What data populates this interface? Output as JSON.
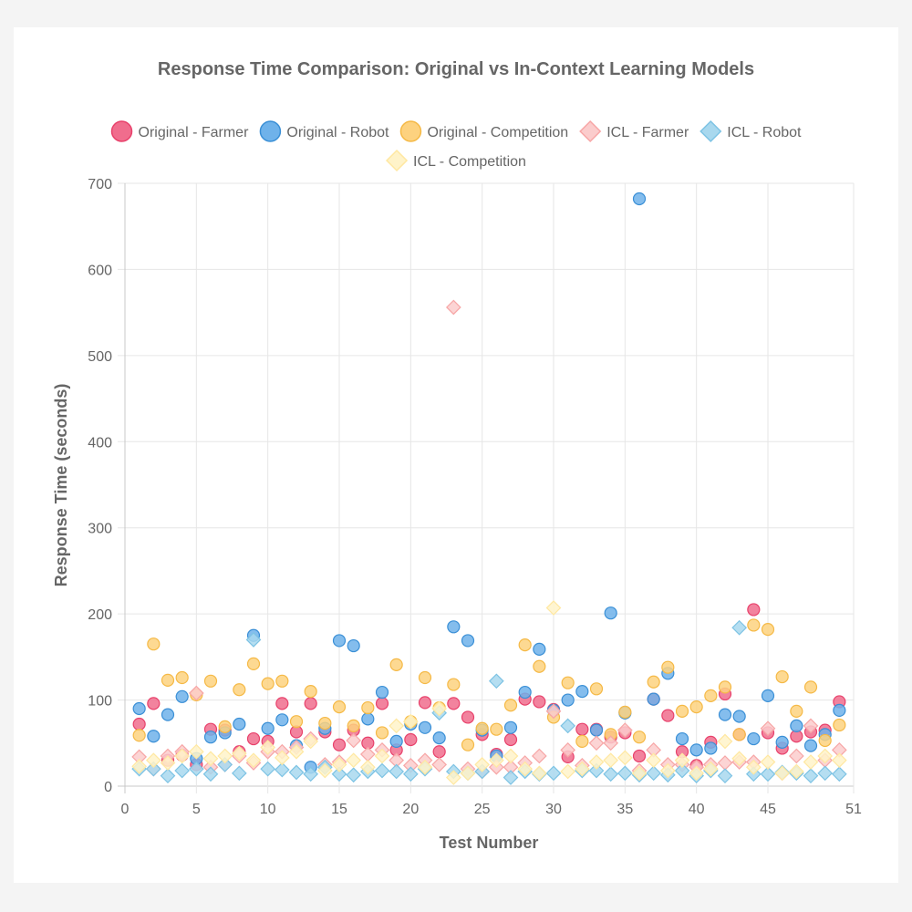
{
  "chart_data": {
    "type": "scatter",
    "title": "Response Time Comparison: Original vs In-Context Learning Models",
    "xlabel": "Test Number",
    "ylabel": "Response Time (seconds)",
    "xlim": [
      0,
      51
    ],
    "ylim": [
      0,
      700
    ],
    "x_ticks": [
      0,
      5,
      10,
      15,
      20,
      25,
      30,
      35,
      40,
      45,
      51
    ],
    "y_ticks": [
      0,
      100,
      200,
      300,
      400,
      500,
      600,
      700
    ],
    "grid": true,
    "legend_position": "top",
    "series": [
      {
        "name": "Original - Farmer",
        "marker": "circle",
        "fill": "#f06d8d",
        "stroke": "#e8416b",
        "points": [
          [
            1,
            72
          ],
          [
            2,
            96
          ],
          [
            3,
            30
          ],
          [
            4,
            36
          ],
          [
            5,
            25
          ],
          [
            6,
            66
          ],
          [
            7,
            65
          ],
          [
            8,
            40
          ],
          [
            9,
            55
          ],
          [
            10,
            52
          ],
          [
            11,
            96
          ],
          [
            12,
            63
          ],
          [
            13,
            96
          ],
          [
            14,
            63
          ],
          [
            15,
            48
          ],
          [
            16,
            65
          ],
          [
            17,
            50
          ],
          [
            18,
            96
          ],
          [
            19,
            42
          ],
          [
            20,
            54
          ],
          [
            21,
            97
          ],
          [
            22,
            40
          ],
          [
            23,
            96
          ],
          [
            24,
            80
          ],
          [
            25,
            60
          ],
          [
            26,
            37
          ],
          [
            27,
            54
          ],
          [
            28,
            101
          ],
          [
            29,
            98
          ],
          [
            30,
            89
          ],
          [
            31,
            34
          ],
          [
            32,
            66
          ],
          [
            33,
            66
          ],
          [
            34,
            57
          ],
          [
            35,
            62
          ],
          [
            36,
            35
          ],
          [
            37,
            101
          ],
          [
            38,
            82
          ],
          [
            39,
            40
          ],
          [
            40,
            24
          ],
          [
            41,
            51
          ],
          [
            42,
            107
          ],
          [
            43,
            60
          ],
          [
            44,
            205
          ],
          [
            45,
            62
          ],
          [
            46,
            44
          ],
          [
            47,
            58
          ],
          [
            48,
            63
          ],
          [
            49,
            65
          ],
          [
            50,
            98
          ]
        ]
      },
      {
        "name": "Original - Robot",
        "marker": "circle",
        "fill": "#6fb2ea",
        "stroke": "#3a8fd6",
        "points": [
          [
            1,
            90
          ],
          [
            2,
            58
          ],
          [
            3,
            83
          ],
          [
            4,
            104
          ],
          [
            5,
            32
          ],
          [
            6,
            57
          ],
          [
            7,
            62
          ],
          [
            8,
            72
          ],
          [
            9,
            175
          ],
          [
            10,
            67
          ],
          [
            11,
            77
          ],
          [
            12,
            47
          ],
          [
            13,
            22
          ],
          [
            14,
            67
          ],
          [
            15,
            169
          ],
          [
            16,
            163
          ],
          [
            17,
            78
          ],
          [
            18,
            109
          ],
          [
            19,
            52
          ],
          [
            20,
            72
          ],
          [
            21,
            68
          ],
          [
            22,
            56
          ],
          [
            23,
            185
          ],
          [
            24,
            169
          ],
          [
            25,
            65
          ],
          [
            26,
            35
          ],
          [
            27,
            68
          ],
          [
            28,
            109
          ],
          [
            29,
            159
          ],
          [
            30,
            88
          ],
          [
            31,
            100
          ],
          [
            32,
            110
          ],
          [
            33,
            65
          ],
          [
            34,
            201
          ],
          [
            35,
            85
          ],
          [
            36,
            682
          ],
          [
            37,
            101
          ],
          [
            38,
            131
          ],
          [
            39,
            55
          ],
          [
            40,
            42
          ],
          [
            41,
            44
          ],
          [
            42,
            83
          ],
          [
            43,
            81
          ],
          [
            44,
            55
          ],
          [
            45,
            105
          ],
          [
            46,
            51
          ],
          [
            47,
            70
          ],
          [
            48,
            47
          ],
          [
            49,
            60
          ],
          [
            50,
            88
          ]
        ]
      },
      {
        "name": "Original - Competition",
        "marker": "circle",
        "fill": "#fdd27f",
        "stroke": "#f5b946",
        "points": [
          [
            1,
            59
          ],
          [
            2,
            165
          ],
          [
            3,
            123
          ],
          [
            4,
            126
          ],
          [
            5,
            106
          ],
          [
            6,
            122
          ],
          [
            7,
            69
          ],
          [
            8,
            112
          ],
          [
            9,
            142
          ],
          [
            10,
            119
          ],
          [
            11,
            122
          ],
          [
            12,
            75
          ],
          [
            13,
            110
          ],
          [
            14,
            73
          ],
          [
            15,
            92
          ],
          [
            16,
            70
          ],
          [
            17,
            91
          ],
          [
            18,
            62
          ],
          [
            19,
            141
          ],
          [
            20,
            75
          ],
          [
            21,
            126
          ],
          [
            22,
            91
          ],
          [
            23,
            118
          ],
          [
            24,
            48
          ],
          [
            25,
            67
          ],
          [
            26,
            66
          ],
          [
            27,
            94
          ],
          [
            28,
            164
          ],
          [
            29,
            139
          ],
          [
            30,
            80
          ],
          [
            31,
            120
          ],
          [
            32,
            52
          ],
          [
            33,
            113
          ],
          [
            34,
            60
          ],
          [
            35,
            86
          ],
          [
            36,
            57
          ],
          [
            37,
            121
          ],
          [
            38,
            138
          ],
          [
            39,
            87
          ],
          [
            40,
            92
          ],
          [
            41,
            105
          ],
          [
            42,
            115
          ],
          [
            43,
            60
          ],
          [
            44,
            187
          ],
          [
            45,
            182
          ],
          [
            46,
            127
          ],
          [
            47,
            87
          ],
          [
            48,
            115
          ],
          [
            49,
            53
          ],
          [
            50,
            71
          ]
        ]
      },
      {
        "name": "ICL - Farmer",
        "marker": "diamond",
        "fill": "#fbcccc",
        "stroke": "#f7a6a6",
        "points": [
          [
            1,
            34
          ],
          [
            2,
            20
          ],
          [
            3,
            35
          ],
          [
            4,
            40
          ],
          [
            5,
            108
          ],
          [
            6,
            22
          ],
          [
            7,
            25
          ],
          [
            8,
            35
          ],
          [
            9,
            27
          ],
          [
            10,
            40
          ],
          [
            11,
            40
          ],
          [
            12,
            45
          ],
          [
            13,
            55
          ],
          [
            14,
            25
          ],
          [
            15,
            28
          ],
          [
            16,
            53
          ],
          [
            17,
            37
          ],
          [
            18,
            42
          ],
          [
            19,
            30
          ],
          [
            20,
            24
          ],
          [
            21,
            30
          ],
          [
            22,
            25
          ],
          [
            23,
            556
          ],
          [
            24,
            20
          ],
          [
            25,
            17
          ],
          [
            26,
            22
          ],
          [
            27,
            22
          ],
          [
            28,
            27
          ],
          [
            29,
            35
          ],
          [
            30,
            87
          ],
          [
            31,
            42
          ],
          [
            32,
            24
          ],
          [
            33,
            50
          ],
          [
            34,
            50
          ],
          [
            35,
            65
          ],
          [
            36,
            18
          ],
          [
            37,
            42
          ],
          [
            38,
            25
          ],
          [
            39,
            25
          ],
          [
            40,
            22
          ],
          [
            41,
            25
          ],
          [
            42,
            27
          ],
          [
            43,
            28
          ],
          [
            44,
            28
          ],
          [
            45,
            67
          ],
          [
            46,
            15
          ],
          [
            47,
            35
          ],
          [
            48,
            70
          ],
          [
            49,
            30
          ],
          [
            50,
            42
          ]
        ]
      },
      {
        "name": "ICL - Robot",
        "marker": "diamond",
        "fill": "#a8d8ee",
        "stroke": "#7dc3e4",
        "points": [
          [
            1,
            20
          ],
          [
            2,
            20
          ],
          [
            3,
            12
          ],
          [
            4,
            18
          ],
          [
            5,
            20
          ],
          [
            6,
            14
          ],
          [
            7,
            25
          ],
          [
            8,
            15
          ],
          [
            9,
            170
          ],
          [
            10,
            20
          ],
          [
            11,
            19
          ],
          [
            12,
            16
          ],
          [
            13,
            14
          ],
          [
            14,
            22
          ],
          [
            15,
            14
          ],
          [
            16,
            13
          ],
          [
            17,
            17
          ],
          [
            18,
            18
          ],
          [
            19,
            17
          ],
          [
            20,
            14
          ],
          [
            21,
            20
          ],
          [
            22,
            85
          ],
          [
            23,
            17
          ],
          [
            24,
            15
          ],
          [
            25,
            17
          ],
          [
            26,
            122
          ],
          [
            27,
            10
          ],
          [
            28,
            17
          ],
          [
            29,
            14
          ],
          [
            30,
            15
          ],
          [
            31,
            70
          ],
          [
            32,
            18
          ],
          [
            33,
            18
          ],
          [
            34,
            14
          ],
          [
            35,
            15
          ],
          [
            36,
            13
          ],
          [
            37,
            15
          ],
          [
            38,
            13
          ],
          [
            39,
            18
          ],
          [
            40,
            12
          ],
          [
            41,
            18
          ],
          [
            42,
            12
          ],
          [
            43,
            184
          ],
          [
            44,
            14
          ],
          [
            45,
            14
          ],
          [
            46,
            16
          ],
          [
            47,
            15
          ],
          [
            48,
            12
          ],
          [
            49,
            15
          ],
          [
            50,
            14
          ]
        ]
      },
      {
        "name": "ICL - Competition",
        "marker": "diamond",
        "fill": "#fff3c9",
        "stroke": "#ffe8a1",
        "points": [
          [
            1,
            23
          ],
          [
            2,
            30
          ],
          [
            3,
            27
          ],
          [
            4,
            35
          ],
          [
            5,
            40
          ],
          [
            6,
            32
          ],
          [
            7,
            35
          ],
          [
            8,
            38
          ],
          [
            9,
            30
          ],
          [
            10,
            45
          ],
          [
            11,
            33
          ],
          [
            12,
            40
          ],
          [
            13,
            52
          ],
          [
            14,
            18
          ],
          [
            15,
            25
          ],
          [
            16,
            30
          ],
          [
            17,
            22
          ],
          [
            18,
            35
          ],
          [
            19,
            70
          ],
          [
            20,
            75
          ],
          [
            21,
            22
          ],
          [
            22,
            90
          ],
          [
            23,
            10
          ],
          [
            24,
            15
          ],
          [
            25,
            25
          ],
          [
            26,
            30
          ],
          [
            27,
            35
          ],
          [
            28,
            20
          ],
          [
            29,
            15
          ],
          [
            30,
            207
          ],
          [
            31,
            17
          ],
          [
            32,
            20
          ],
          [
            33,
            28
          ],
          [
            34,
            30
          ],
          [
            35,
            33
          ],
          [
            36,
            15
          ],
          [
            37,
            30
          ],
          [
            38,
            18
          ],
          [
            39,
            30
          ],
          [
            40,
            15
          ],
          [
            41,
            20
          ],
          [
            42,
            52
          ],
          [
            43,
            32
          ],
          [
            44,
            22
          ],
          [
            45,
            28
          ],
          [
            46,
            15
          ],
          [
            47,
            17
          ],
          [
            48,
            28
          ],
          [
            49,
            35
          ],
          [
            50,
            30
          ]
        ]
      }
    ]
  }
}
